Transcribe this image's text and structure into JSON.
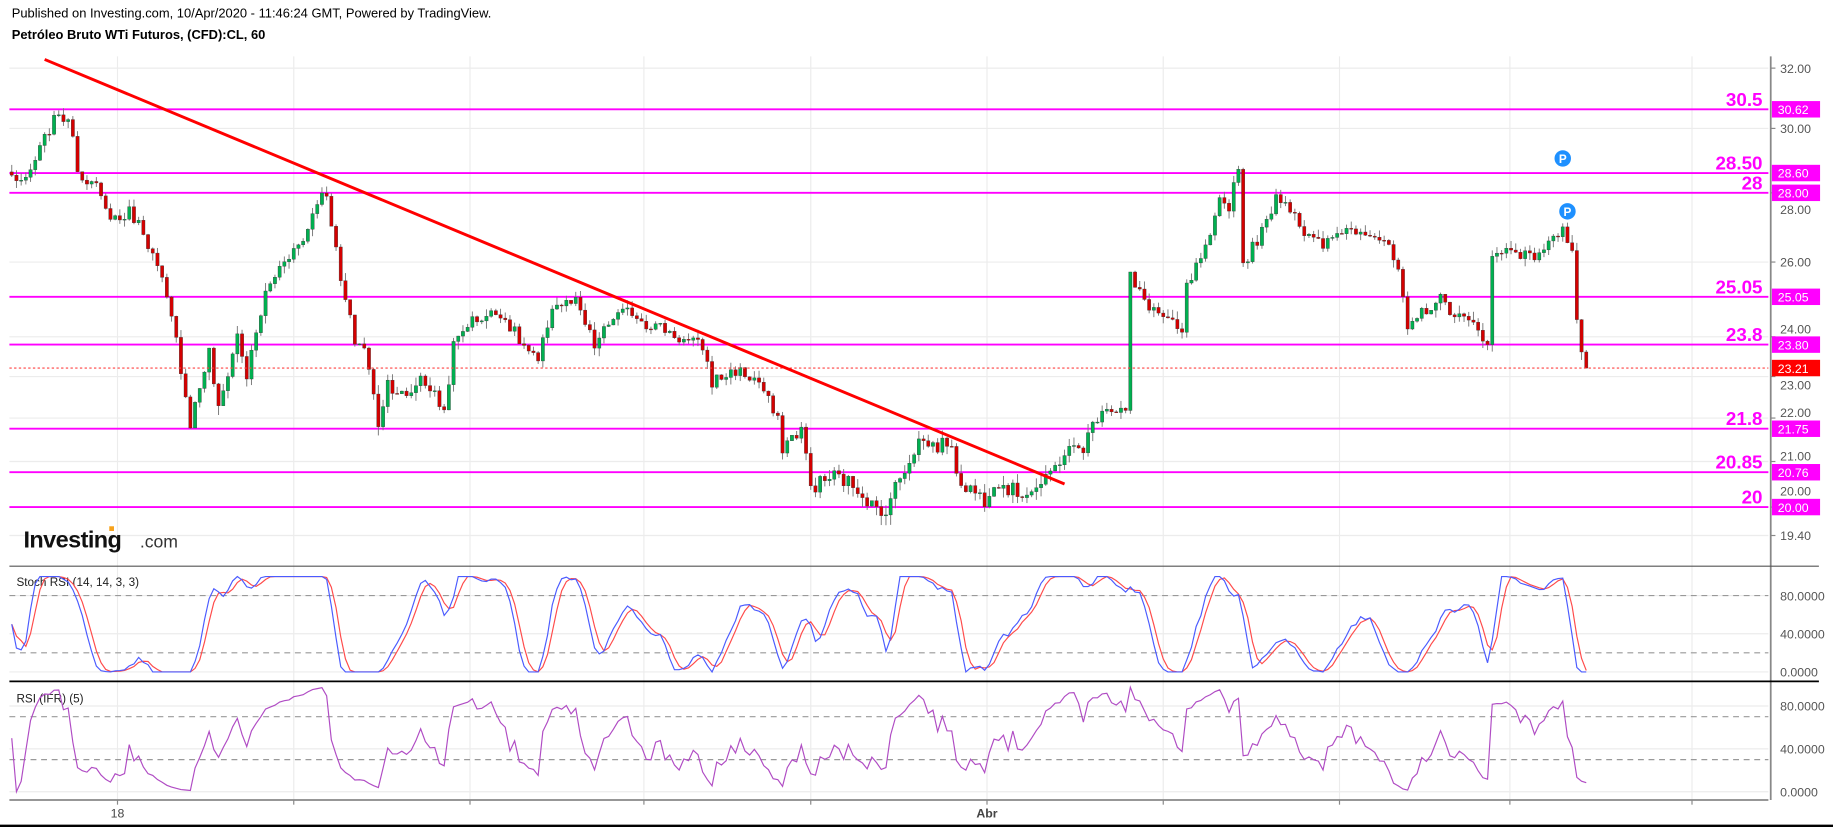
{
  "header": {
    "published": "Published on Investing.com, 10/Apr/2020 - 11:46:24 GMT, Powered by TradingView.",
    "symbol_title": "Petróleo Bruto WTi Futuros, (CFD):CL, 60"
  },
  "logo": {
    "brand": "Investing",
    "suffix": ".com"
  },
  "colors": {
    "up_candle": "#00b050",
    "down_candle": "#d40000",
    "level_line": "#ff00ff",
    "trendline": "#ff0000",
    "last_price": "#ff0000",
    "stoch_k": "#4b5bff",
    "stoch_d": "#ff4b4b",
    "rsi": "#b04cc4",
    "marker": "#1e90ff"
  },
  "chart_data": [
    {
      "type": "candlestick",
      "title": "Petróleo Bruto WTi Futuros, (CFD):CL, 60",
      "y_scale": "log",
      "ylim": [
        19.1,
        32.3
      ],
      "grid": true,
      "y_ticks": [
        "32.00",
        "30.00",
        "28.00",
        "26.00",
        "24.00",
        "23.00",
        "22.00",
        "21.00",
        "20.00",
        "19.40"
      ],
      "x_ticks": [
        "18",
        "Abr"
      ],
      "close_path": [
        [
          0,
          28.5
        ],
        [
          3,
          28.3
        ],
        [
          7,
          29.67
        ],
        [
          10,
          30.54
        ],
        [
          13,
          29.9
        ],
        [
          14,
          28.68
        ],
        [
          18,
          28.15
        ],
        [
          20,
          27.45
        ],
        [
          23,
          27.2
        ],
        [
          25,
          27.45
        ],
        [
          28,
          26.9
        ],
        [
          32,
          25.45
        ],
        [
          35,
          23.9
        ],
        [
          38,
          21.89
        ],
        [
          42,
          23.61
        ],
        [
          44,
          22.16
        ],
        [
          48,
          24.05
        ],
        [
          50,
          23.01
        ],
        [
          54,
          25.13
        ],
        [
          58,
          26.1
        ],
        [
          62,
          26.6
        ],
        [
          65,
          27.8
        ],
        [
          67,
          28.0
        ],
        [
          70,
          25.45
        ],
        [
          73,
          23.9
        ],
        [
          75,
          23.75
        ],
        [
          78,
          21.89
        ],
        [
          80,
          22.87
        ],
        [
          84,
          22.44
        ],
        [
          87,
          23.01
        ],
        [
          89,
          22.72
        ],
        [
          92,
          22.16
        ],
        [
          94,
          23.75
        ],
        [
          97,
          24.36
        ],
        [
          100,
          24.51
        ],
        [
          104,
          24.66
        ],
        [
          108,
          23.9
        ],
        [
          112,
          23.31
        ],
        [
          115,
          24.82
        ],
        [
          120,
          24.88
        ],
        [
          124,
          23.75
        ],
        [
          128,
          24.51
        ],
        [
          132,
          24.66
        ],
        [
          135,
          24.36
        ],
        [
          139,
          24.2
        ],
        [
          143,
          23.9
        ],
        [
          147,
          23.75
        ],
        [
          149,
          22.87
        ],
        [
          154,
          23.16
        ],
        [
          159,
          22.87
        ],
        [
          163,
          21.89
        ],
        [
          164,
          21.34
        ],
        [
          168,
          21.75
        ],
        [
          170,
          20.43
        ],
        [
          175,
          20.68
        ],
        [
          180,
          20.43
        ],
        [
          185,
          19.79
        ],
        [
          188,
          20.43
        ],
        [
          193,
          21.48
        ],
        [
          197,
          21.34
        ],
        [
          199,
          21.48
        ],
        [
          202,
          20.55
        ],
        [
          207,
          20.17
        ],
        [
          209,
          20.6
        ],
        [
          214,
          20.29
        ],
        [
          218,
          20.43
        ],
        [
          220,
          20.55
        ],
        [
          224,
          21.21
        ],
        [
          228,
          21.34
        ],
        [
          232,
          22.3
        ],
        [
          237,
          22.16
        ],
        [
          238,
          25.6
        ],
        [
          239,
          25.29
        ],
        [
          242,
          24.82
        ],
        [
          245,
          24.51
        ],
        [
          249,
          24.05
        ],
        [
          250,
          25.29
        ],
        [
          253,
          26.1
        ],
        [
          255,
          26.6
        ],
        [
          257,
          27.73
        ],
        [
          259,
          27.62
        ],
        [
          261,
          28.86
        ],
        [
          262,
          25.94
        ],
        [
          267,
          27.1
        ],
        [
          269,
          27.97
        ],
        [
          273,
          27.45
        ],
        [
          275,
          26.77
        ],
        [
          279,
          26.43
        ],
        [
          283,
          26.93
        ],
        [
          288,
          26.93
        ],
        [
          292,
          26.6
        ],
        [
          295,
          25.77
        ],
        [
          297,
          24.05
        ],
        [
          300,
          24.66
        ],
        [
          304,
          24.97
        ],
        [
          308,
          24.51
        ],
        [
          312,
          24.2
        ],
        [
          314,
          23.9
        ],
        [
          315,
          26.1
        ],
        [
          319,
          26.43
        ],
        [
          323,
          26.1
        ],
        [
          328,
          26.6
        ],
        [
          330,
          27.1
        ],
        [
          332,
          26.26
        ],
        [
          333,
          24.51
        ],
        [
          334,
          23.61
        ],
        [
          335,
          23.21
        ]
      ],
      "last_price": "23.21",
      "levels": [
        {
          "label": "30.5",
          "value": 30.62,
          "box": "30.62"
        },
        {
          "label": "28.50",
          "value": 28.6,
          "box": "28.60"
        },
        {
          "label": "28",
          "value": 28.0,
          "box": "28.00"
        },
        {
          "label": "25.05",
          "value": 25.05,
          "box": "25.05"
        },
        {
          "label": "23.8",
          "value": 23.8,
          "box": "23.80"
        },
        {
          "label": "21.8",
          "value": 21.75,
          "box": "21.75"
        },
        {
          "label": "20.85",
          "value": 20.76,
          "box": "20.76"
        },
        {
          "label": "20",
          "value": 20.0,
          "box": "20.00"
        }
      ],
      "trendline": [
        [
          7,
          32.3
        ],
        [
          224,
          20.5
        ]
      ],
      "markers": [
        {
          "label": "P",
          "bar": 330,
          "price": 29.05
        },
        {
          "label": "P",
          "bar": 331,
          "price": 27.45
        }
      ]
    },
    {
      "type": "line",
      "title": "Stoch RSI (14, 14, 3, 3)",
      "ylim": [
        0,
        100
      ],
      "y_ticks": [
        "80.0000",
        "40.0000",
        "0.0000"
      ],
      "bands": [
        80,
        20
      ],
      "series": [
        "K",
        "D"
      ]
    },
    {
      "type": "line",
      "title": "RSI (IFR) (5)",
      "ylim": [
        0,
        100
      ],
      "y_ticks": [
        "80.0000",
        "40.0000",
        "0.0000"
      ],
      "bands": [
        70,
        30
      ]
    }
  ]
}
